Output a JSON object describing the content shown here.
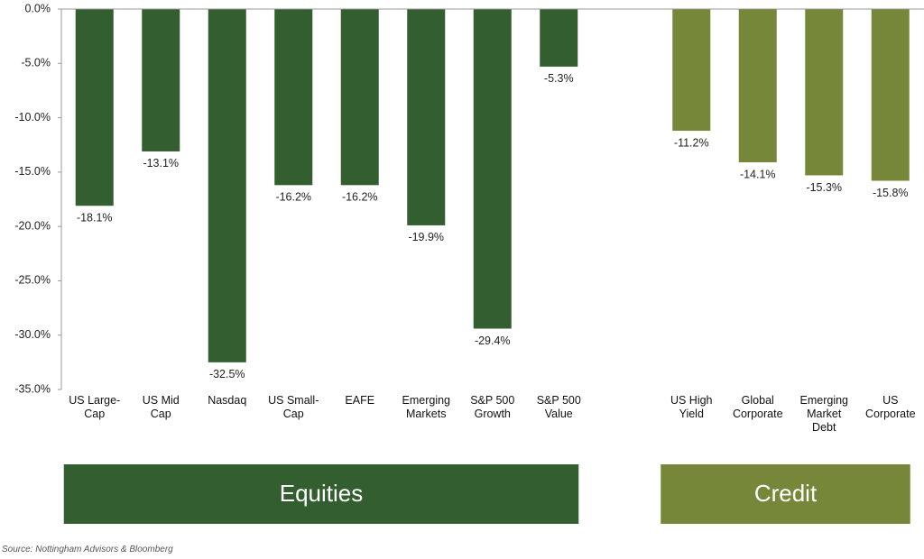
{
  "chart_data": {
    "type": "bar",
    "categories": [
      "US Large-Cap",
      "US Mid Cap",
      "Nasdaq",
      "US Small-Cap",
      "EAFE",
      "Emerging Markets",
      "S&P 500 Growth",
      "S&P 500 Value",
      null,
      "US High Yield",
      "Global Corporate",
      "Emerging Market Debt",
      "US Corporate"
    ],
    "series": [
      {
        "name": "Equities",
        "color": "#335e2f",
        "values": [
          -18.1,
          -13.1,
          -32.5,
          -16.2,
          -16.2,
          -19.9,
          -29.4,
          -5.3,
          null,
          null,
          null,
          null,
          null
        ],
        "value_labels": [
          "-18.1%",
          "-13.1%",
          "-32.5%",
          "-16.2%",
          "-16.2%",
          "-19.9%",
          "-29.4%",
          "-5.3%",
          null,
          null,
          null,
          null,
          null
        ]
      },
      {
        "name": "Credit",
        "color": "#77873a",
        "values": [
          null,
          null,
          null,
          null,
          null,
          null,
          null,
          null,
          null,
          -11.2,
          -14.1,
          -15.3,
          -15.8
        ],
        "value_labels": [
          null,
          null,
          null,
          null,
          null,
          null,
          null,
          null,
          null,
          "-11.2%",
          "-14.1%",
          "-15.3%",
          "-15.8%"
        ]
      }
    ],
    "ylim": [
      -35,
      0
    ],
    "yticks": [
      {
        "value": 0,
        "label": "0.0%"
      },
      {
        "value": -5,
        "label": "-5.0%"
      },
      {
        "value": -10,
        "label": "-10.0%"
      },
      {
        "value": -15,
        "label": "-15.0%"
      },
      {
        "value": -20,
        "label": "-20.0%"
      },
      {
        "value": -25,
        "label": "-25.0%"
      },
      {
        "value": -30,
        "label": "-30.0%"
      },
      {
        "value": -35,
        "label": "-35.0%"
      }
    ],
    "source": "Source: Nottingham Advisors & Bloomberg"
  }
}
